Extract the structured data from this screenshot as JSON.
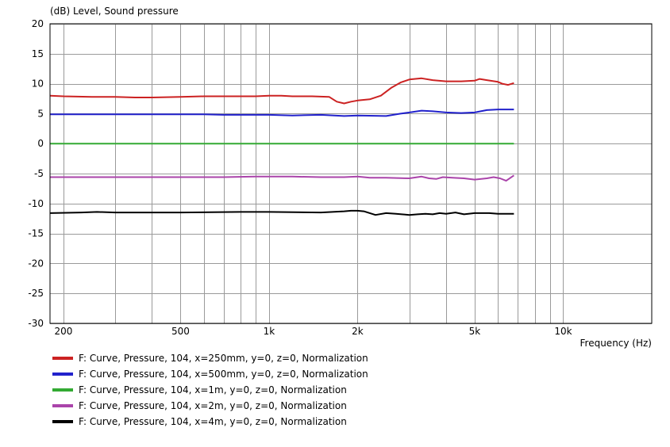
{
  "chart_data": {
    "type": "line",
    "title": "",
    "ylabel": "(dB)  Level, Sound pressure",
    "xlabel": "Frequency  (Hz)",
    "x_scale": "log",
    "xlim": [
      180,
      20000
    ],
    "ylim": [
      -30,
      20
    ],
    "grid": true,
    "x_tick_labels": [
      {
        "value": 200,
        "label": "200"
      },
      {
        "value": 500,
        "label": "500"
      },
      {
        "value": 1000,
        "label": "1k"
      },
      {
        "value": 2000,
        "label": "2k"
      },
      {
        "value": 5000,
        "label": "5k"
      },
      {
        "value": 10000,
        "label": "10k"
      }
    ],
    "y_ticks": [
      20,
      15,
      10,
      5,
      0,
      -5,
      -10,
      -15,
      -20,
      -25,
      -30
    ],
    "legend_position": "bottom-left",
    "series": [
      {
        "name": "F: Curve, Pressure, 104, x=250mm, y=0, z=0, Normalization",
        "color": "#cc2222",
        "x": [
          180,
          200,
          250,
          300,
          350,
          400,
          500,
          600,
          700,
          800,
          900,
          1000,
          1100,
          1200,
          1400,
          1600,
          1700,
          1800,
          1900,
          2000,
          2200,
          2400,
          2600,
          2800,
          3000,
          3300,
          3600,
          4000,
          4500,
          5000,
          5200,
          5500,
          6000,
          6200,
          6500,
          6800
        ],
        "y": [
          8.0,
          7.9,
          7.8,
          7.8,
          7.7,
          7.7,
          7.8,
          7.9,
          7.9,
          7.9,
          7.9,
          8.0,
          8.0,
          7.9,
          7.9,
          7.8,
          7.0,
          6.7,
          7.0,
          7.2,
          7.4,
          8.0,
          9.3,
          10.2,
          10.7,
          10.9,
          10.6,
          10.4,
          10.4,
          10.5,
          10.8,
          10.6,
          10.3,
          10.0,
          9.8,
          10.1
        ]
      },
      {
        "name": "F: Curve, Pressure, 104, x=500mm, y=0, z=0, Normalization",
        "color": "#2222cc",
        "x": [
          180,
          300,
          500,
          600,
          700,
          1000,
          1200,
          1500,
          1800,
          2000,
          2500,
          2800,
          3000,
          3300,
          3600,
          4000,
          4500,
          5000,
          5500,
          6000,
          6800
        ],
        "y": [
          4.9,
          4.9,
          4.9,
          4.9,
          4.8,
          4.8,
          4.7,
          4.8,
          4.6,
          4.7,
          4.6,
          5.0,
          5.2,
          5.5,
          5.4,
          5.2,
          5.1,
          5.2,
          5.6,
          5.7,
          5.7
        ]
      },
      {
        "name": "F: Curve, Pressure, 104, x=1m, y=0, z=0, Normalization",
        "color": "#33aa33",
        "x": [
          180,
          6800
        ],
        "y": [
          0.0,
          0.0
        ]
      },
      {
        "name": "F: Curve, Pressure, 104, x=2m, y=0, z=0, Normalization",
        "color": "#aa44aa",
        "x": [
          180,
          300,
          500,
          700,
          900,
          1200,
          1500,
          1800,
          2000,
          2200,
          2500,
          3000,
          3300,
          3500,
          3700,
          3900,
          4200,
          4600,
          5000,
          5500,
          5800,
          6100,
          6400,
          6800
        ],
        "y": [
          -5.6,
          -5.6,
          -5.6,
          -5.6,
          -5.5,
          -5.5,
          -5.6,
          -5.6,
          -5.5,
          -5.7,
          -5.7,
          -5.8,
          -5.5,
          -5.8,
          -5.9,
          -5.6,
          -5.7,
          -5.8,
          -6.0,
          -5.8,
          -5.6,
          -5.8,
          -6.2,
          -5.3
        ]
      },
      {
        "name": "F: Curve, Pressure, 104, x=4m, y=0, z=0, Normalization",
        "color": "#000000",
        "x": [
          180,
          230,
          260,
          300,
          500,
          800,
          1000,
          1500,
          1800,
          1900,
          2000,
          2100,
          2300,
          2500,
          2700,
          3000,
          3200,
          3400,
          3600,
          3800,
          4000,
          4300,
          4600,
          5000,
          5300,
          5600,
          6000,
          6800
        ],
        "y": [
          -11.6,
          -11.5,
          -11.4,
          -11.5,
          -11.5,
          -11.4,
          -11.4,
          -11.5,
          -11.3,
          -11.2,
          -11.2,
          -11.3,
          -11.9,
          -11.6,
          -11.7,
          -11.9,
          -11.8,
          -11.7,
          -11.8,
          -11.6,
          -11.7,
          -11.5,
          -11.8,
          -11.6,
          -11.6,
          -11.6,
          -11.7,
          -11.7
        ]
      }
    ]
  }
}
